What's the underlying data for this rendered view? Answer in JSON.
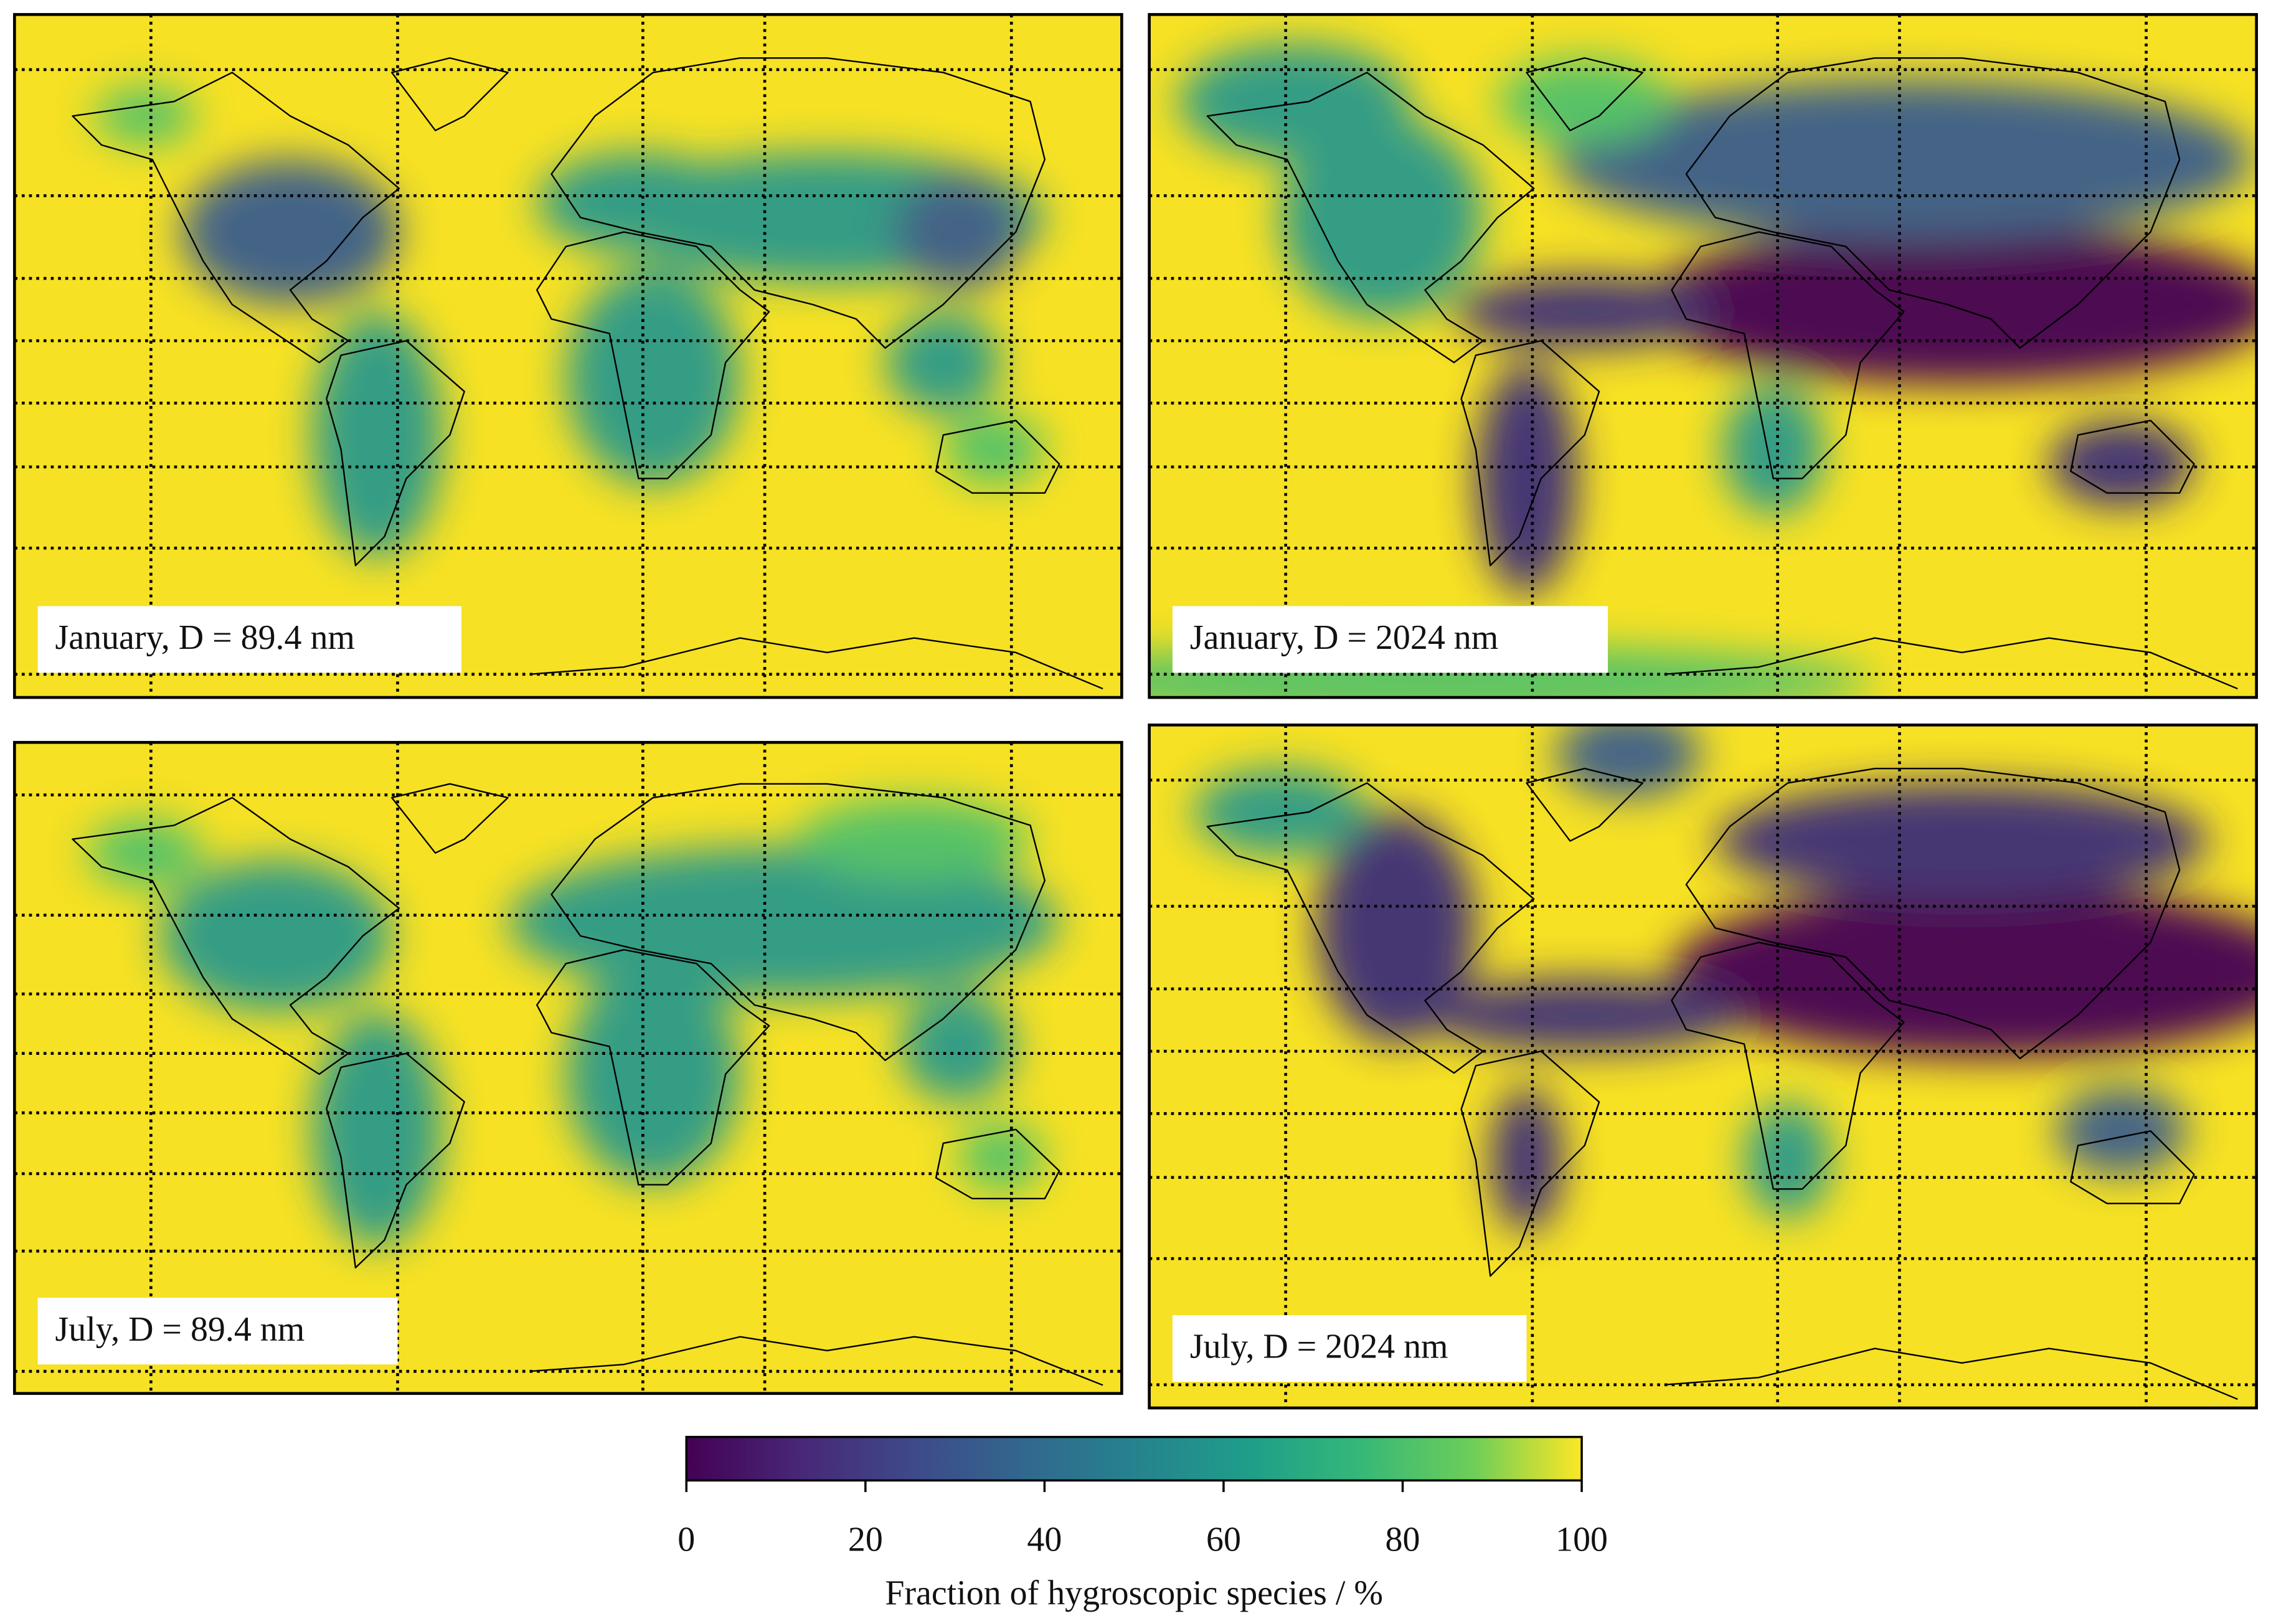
{
  "panels": [
    {
      "label": "January, D = 89.4 nm"
    },
    {
      "label": "January, D = 2024 nm"
    },
    {
      "label": "July, D = 89.4 nm"
    },
    {
      "label": "July, D = 2024 nm"
    }
  ],
  "colorbar": {
    "label": "Fraction of hygroscopic species / %",
    "range": [
      0,
      100
    ],
    "ticks": [
      0,
      20,
      40,
      60,
      80,
      100
    ]
  }
}
